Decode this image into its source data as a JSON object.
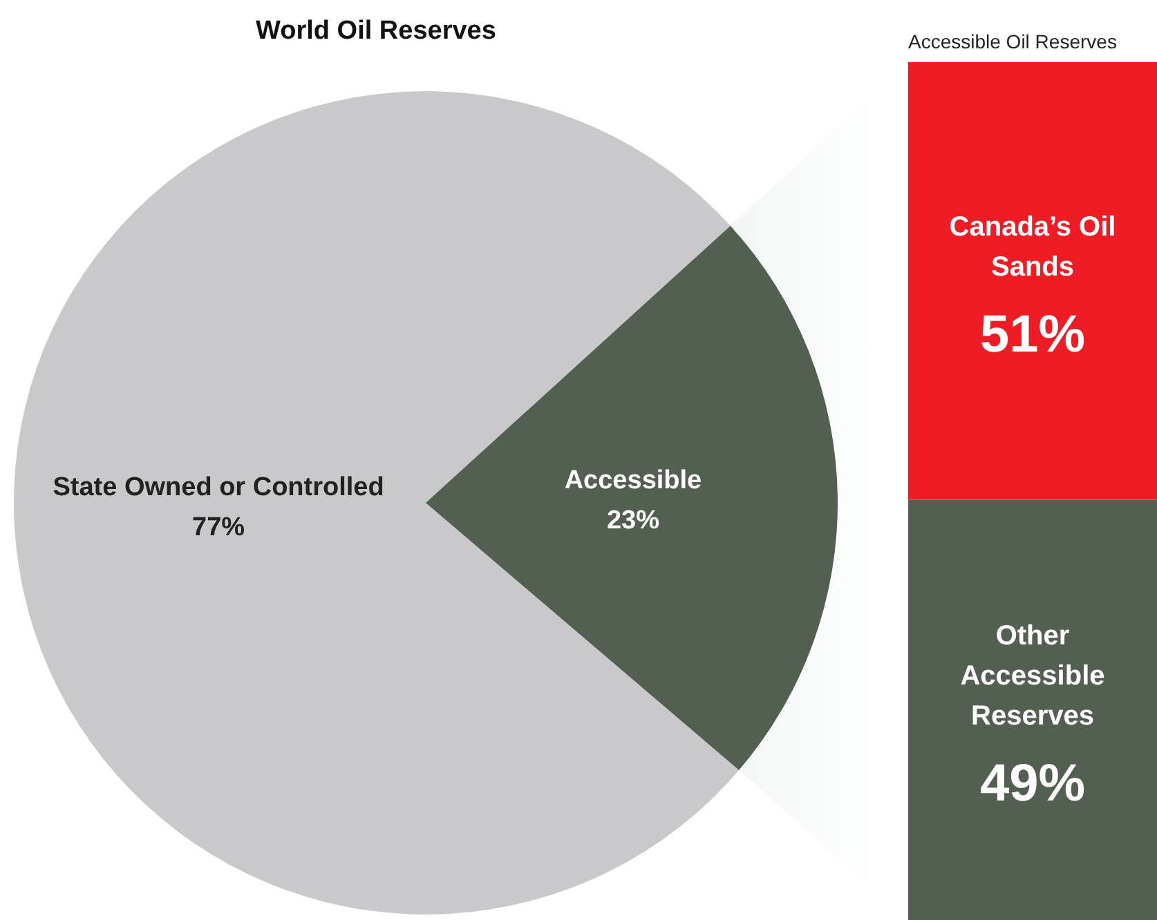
{
  "chart_data": [
    {
      "type": "pie",
      "title": "World Oil Reserves",
      "categories": [
        "State Owned or Controlled",
        "Accessible"
      ],
      "values": [
        77,
        23
      ],
      "colors": [
        "#c9c9cb",
        "#535f50"
      ],
      "value_labels": [
        "77%",
        "23%"
      ]
    },
    {
      "type": "bar",
      "title": "Accessible Oil Reserves",
      "stacked": true,
      "categories": [
        null
      ],
      "series": [
        {
          "name": "Other Accessible Reserves",
          "color": "#535f50",
          "values": [
            49
          ],
          "value_labels": [
            "49%"
          ]
        },
        {
          "name": "Canada’s Oil Sands",
          "color": "#ee1c25",
          "values": [
            51
          ],
          "value_labels": [
            "51%"
          ]
        }
      ]
    }
  ]
}
